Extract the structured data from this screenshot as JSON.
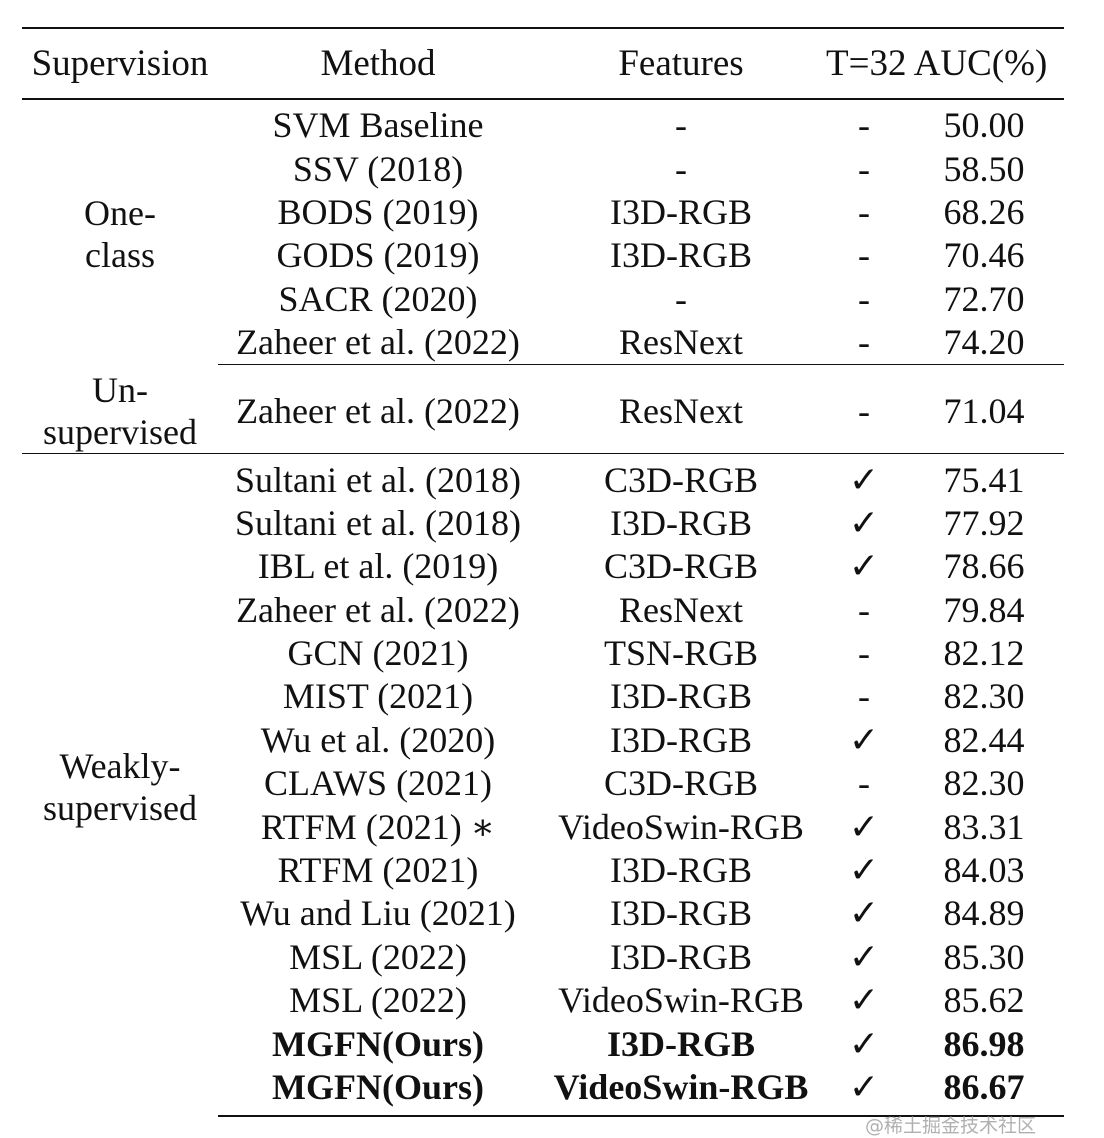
{
  "table": {
    "headers": {
      "supervision": "Supervision",
      "method": "Method",
      "features": "Features",
      "t32": "T=32",
      "auc": "AUC(%)"
    },
    "groups": [
      {
        "supervision": "One-class",
        "rows": [
          {
            "method": "SVM Baseline",
            "features": "-",
            "t32": "-",
            "auc": "50.00"
          },
          {
            "method": "SSV (2018)",
            "features": "-",
            "t32": "-",
            "auc": "58.50"
          },
          {
            "method": "BODS (2019)",
            "features": "I3D-RGB",
            "t32": "-",
            "auc": "68.26"
          },
          {
            "method": "GODS (2019)",
            "features": "I3D-RGB",
            "t32": "-",
            "auc": "70.46"
          },
          {
            "method": "SACR (2020)",
            "features": "-",
            "t32": "-",
            "auc": "72.70"
          },
          {
            "method": "Zaheer et al. (2022)",
            "features": "ResNext",
            "t32": "-",
            "auc": "74.20"
          }
        ]
      },
      {
        "supervision": "Un-supervised",
        "rows": [
          {
            "method": "Zaheer et al. (2022)",
            "features": "ResNext",
            "t32": "-",
            "auc": "71.04"
          }
        ]
      },
      {
        "supervision": "Weakly-supervised",
        "rows": [
          {
            "method": "Sultani et al. (2018)",
            "features": "C3D-RGB",
            "t32": "✓",
            "auc": "75.41"
          },
          {
            "method": "Sultani et al. (2018)",
            "features": "I3D-RGB",
            "t32": "✓",
            "auc": "77.92"
          },
          {
            "method": "IBL et al. (2019)",
            "features": "C3D-RGB",
            "t32": "✓",
            "auc": "78.66"
          },
          {
            "method": "Zaheer et al. (2022)",
            "features": "ResNext",
            "t32": "-",
            "auc": "79.84"
          },
          {
            "method": "GCN (2021)",
            "features": "TSN-RGB",
            "t32": "-",
            "auc": "82.12"
          },
          {
            "method": "MIST (2021)",
            "features": "I3D-RGB",
            "t32": "-",
            "auc": "82.30"
          },
          {
            "method": "Wu et al. (2020)",
            "features": "I3D-RGB",
            "t32": "✓",
            "auc": "82.44"
          },
          {
            "method": "CLAWS (2021)",
            "features": "C3D-RGB",
            "t32": "-",
            "auc": "82.30"
          },
          {
            "method": "RTFM (2021) ∗",
            "features": "VideoSwin-RGB",
            "t32": "✓",
            "auc": "83.31"
          },
          {
            "method": "RTFM (2021)",
            "features": "I3D-RGB",
            "t32": "✓",
            "auc": "84.03"
          },
          {
            "method": "Wu and Liu (2021)",
            "features": "I3D-RGB",
            "t32": "✓",
            "auc": "84.89"
          },
          {
            "method": "MSL (2022)",
            "features": "I3D-RGB",
            "t32": "✓",
            "auc": "85.30"
          },
          {
            "method": "MSL (2022)",
            "features": "VideoSwin-RGB",
            "t32": "✓",
            "auc": "85.62"
          },
          {
            "method": "MGFN(Ours)",
            "features": "I3D-RGB",
            "t32": "✓",
            "auc": "86.98",
            "bold": true
          },
          {
            "method": "MGFN(Ours)",
            "features": "VideoSwin-RGB",
            "t32": "✓",
            "auc": "86.67",
            "bold": true
          }
        ]
      }
    ]
  },
  "watermark": "@稀土掘金技术社区"
}
